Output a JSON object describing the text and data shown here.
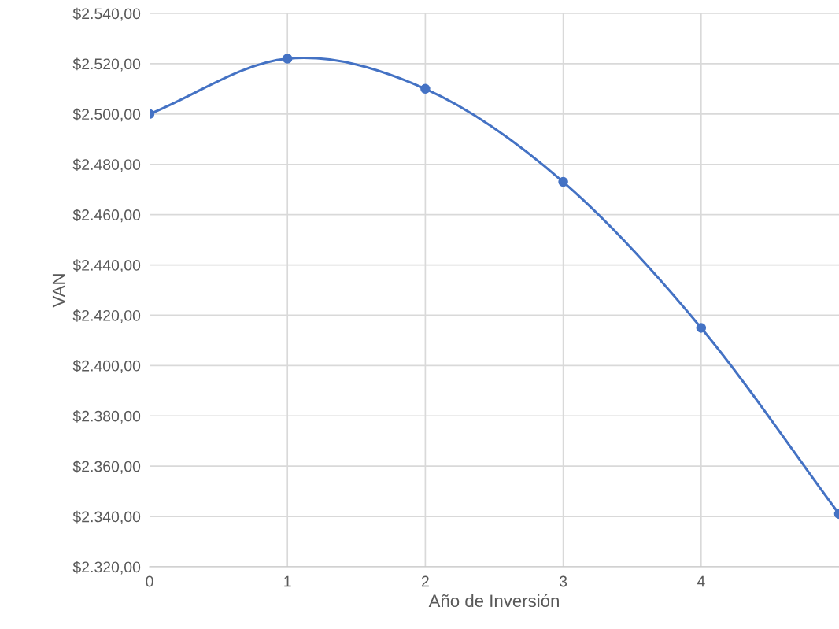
{
  "chart_data": {
    "type": "line",
    "xlabel": "Año de Inversión",
    "ylabel": "VAN",
    "x": [
      0,
      1,
      2,
      3,
      4,
      5
    ],
    "series": [
      {
        "color": "#4472c4",
        "values": [
          2500,
          2522,
          2510,
          2473,
          2415,
          2341
        ]
      }
    ],
    "xlim": [
      0,
      5
    ],
    "xticks": [
      0,
      1,
      2,
      3,
      4
    ],
    "ylim": [
      2320,
      2540
    ],
    "yticks": [
      {
        "value": 2320,
        "label": "$2.320,00"
      },
      {
        "value": 2340,
        "label": "$2.340,00"
      },
      {
        "value": 2360,
        "label": "$2.360,00"
      },
      {
        "value": 2380,
        "label": "$2.380,00"
      },
      {
        "value": 2400,
        "label": "$2.400,00"
      },
      {
        "value": 2420,
        "label": "$2.420,00"
      },
      {
        "value": 2440,
        "label": "$2.440,00"
      },
      {
        "value": 2460,
        "label": "$2.460,00"
      },
      {
        "value": 2480,
        "label": "$2.480,00"
      },
      {
        "value": 2500,
        "label": "$2.500,00"
      },
      {
        "value": 2520,
        "label": "$2.520,00"
      },
      {
        "value": 2540,
        "label": "$2.540,00"
      }
    ],
    "grid": true,
    "marker": "circle",
    "line_style": "solid"
  }
}
